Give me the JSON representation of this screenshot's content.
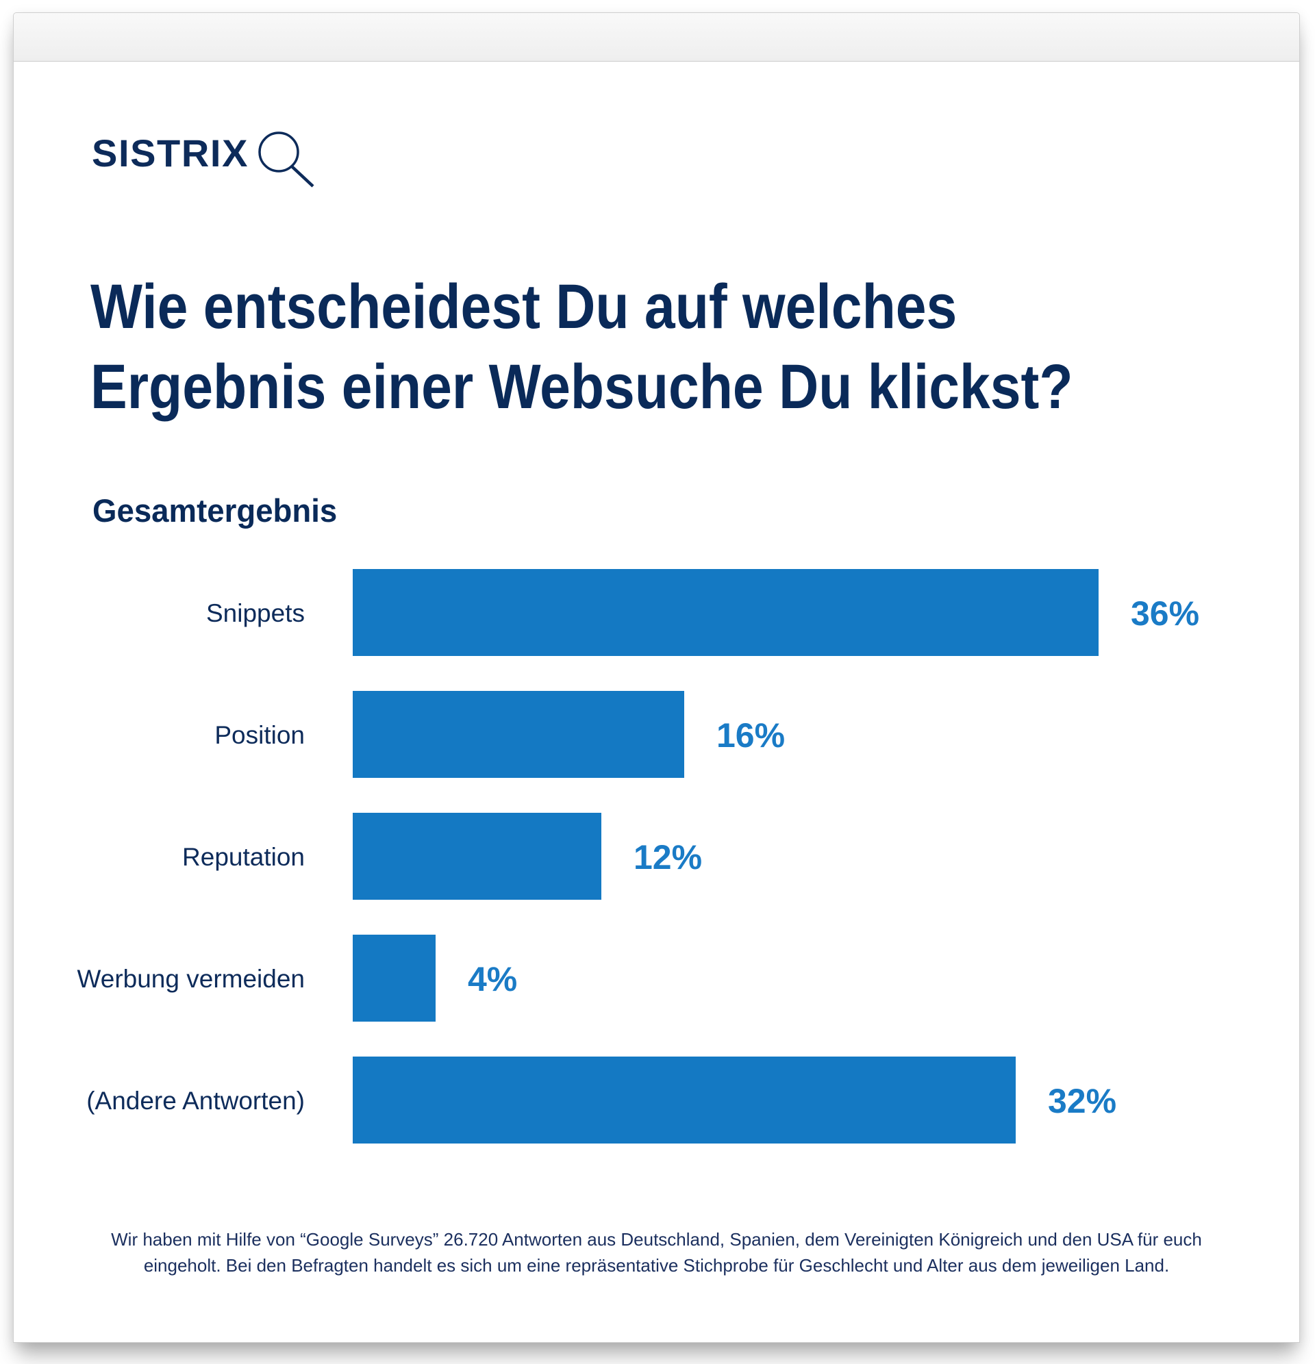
{
  "brand": {
    "name": "SISTRIX",
    "icon": "magnifier-icon"
  },
  "title": {
    "line1": "Wie entscheidest Du auf welches",
    "line2": "Ergebnis einer Websuche Du klickst?"
  },
  "colors": {
    "navy": "#0a2a59",
    "bar": "#1479c3",
    "value": "#1a7bc6"
  },
  "chart_data": {
    "type": "bar",
    "orientation": "horizontal",
    "title": "Wie entscheidest Du auf welches Ergebnis einer Websuche Du klickst?",
    "subtitle": "Gesamtergebnis",
    "categories": [
      "Snippets",
      "Position",
      "Reputation",
      "Werbung vermeiden",
      "(Andere Antworten)"
    ],
    "values": [
      36,
      16,
      12,
      4,
      32
    ],
    "value_labels": [
      "36%",
      "16%",
      "12%",
      "4%",
      "32%"
    ],
    "unit": "%",
    "xlabel": "",
    "ylabel": "",
    "xlim": [
      0,
      36
    ],
    "grid": false,
    "legend": "none"
  },
  "footnote": {
    "line1": "Wir haben mit Hilfe von “Google Surveys” 26.720 Antworten aus Deutschland, Spanien, dem Vereinigten Königreich und den USA für euch",
    "line2": "eingeholt. Bei den Befragten handelt es sich um eine repräsentative Stichprobe für Geschlecht und Alter aus dem jeweiligen Land."
  }
}
